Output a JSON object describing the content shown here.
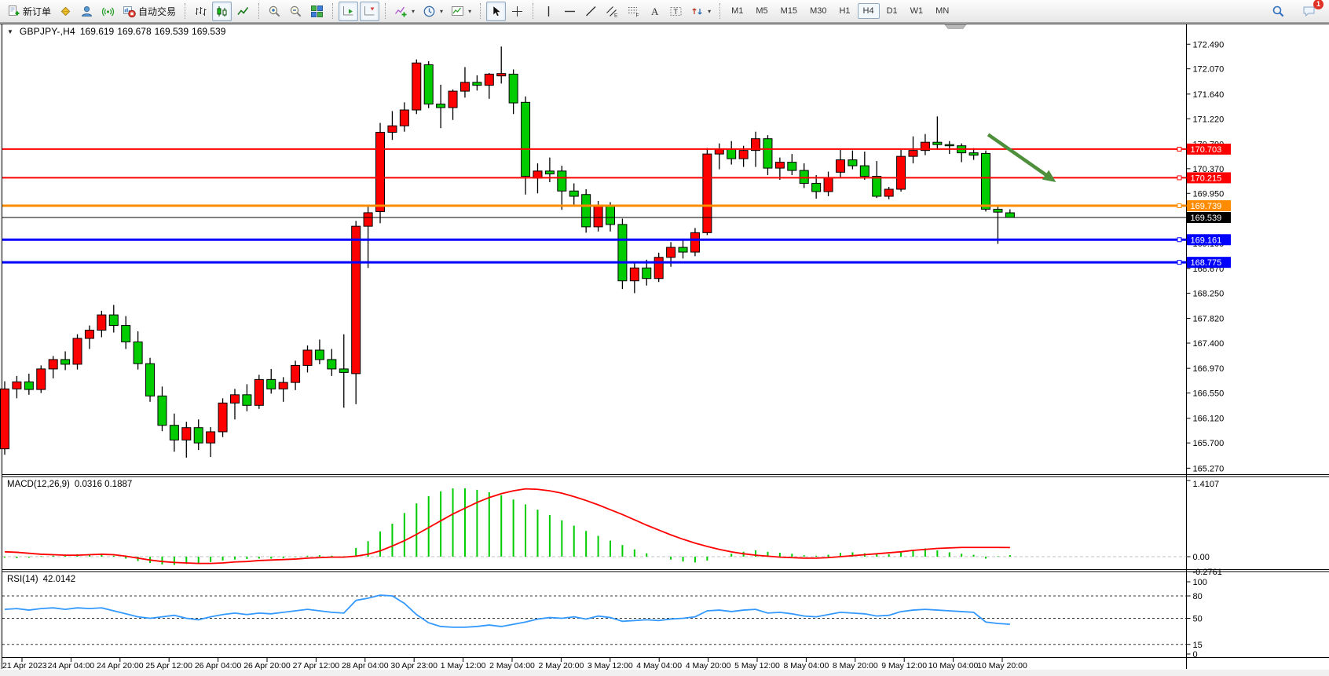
{
  "toolbar": {
    "buttons": [
      {
        "name": "new-order",
        "icon": "new-order-icon",
        "label": "新订单"
      },
      {
        "name": "metaeditor",
        "icon": "metaeditor-icon"
      },
      {
        "name": "community",
        "icon": "community-icon"
      },
      {
        "name": "signals",
        "icon": "signals-icon"
      },
      {
        "name": "autotrading",
        "icon": "autotrading-icon",
        "label": "自动交易"
      },
      {
        "sep": true
      },
      {
        "name": "chart-bars",
        "icon": "bar-chart-icon"
      },
      {
        "name": "chart-candles",
        "icon": "candles-icon",
        "active": true
      },
      {
        "name": "chart-line",
        "icon": "line-chart-icon"
      },
      {
        "sep": true
      },
      {
        "name": "zoom-in",
        "icon": "zoom-in-icon"
      },
      {
        "name": "zoom-out",
        "icon": "zoom-out-icon"
      },
      {
        "name": "tile-windows",
        "icon": "tile-windows-icon"
      },
      {
        "sep": true
      },
      {
        "name": "auto-scroll",
        "icon": "auto-scroll-icon",
        "active": true
      },
      {
        "name": "chart-shift",
        "icon": "chart-shift-icon",
        "active": true
      },
      {
        "sep": true
      },
      {
        "name": "indicators",
        "icon": "indicators-icon",
        "dropdown": true
      },
      {
        "name": "periods",
        "icon": "periods-icon",
        "dropdown": true
      },
      {
        "name": "templates",
        "icon": "templates-icon",
        "dropdown": true
      },
      {
        "sep": true
      },
      {
        "name": "cursor",
        "icon": "cursor-icon",
        "active": true
      },
      {
        "name": "crosshair",
        "icon": "crosshair-icon"
      },
      {
        "sep": true
      },
      {
        "name": "vertical-line",
        "icon": "vertical-line-icon"
      },
      {
        "name": "horizontal-line",
        "icon": "horizontal-line-icon"
      },
      {
        "name": "trend-line",
        "icon": "trend-line-icon"
      },
      {
        "name": "equidistant-channel",
        "icon": "channel-icon"
      },
      {
        "name": "fibonacci",
        "icon": "fibonacci-icon"
      },
      {
        "name": "text",
        "icon": "text-icon"
      },
      {
        "name": "text-label",
        "icon": "text-label-icon"
      },
      {
        "name": "arrows",
        "icon": "arrows-icon",
        "dropdown": true
      },
      {
        "sep": true
      }
    ],
    "timeframes": [
      {
        "label": "M1"
      },
      {
        "label": "M5"
      },
      {
        "label": "M15"
      },
      {
        "label": "M30"
      },
      {
        "label": "H1"
      },
      {
        "label": "H4",
        "active": true
      },
      {
        "label": "D1"
      },
      {
        "label": "W1"
      },
      {
        "label": "MN"
      }
    ],
    "right": [
      {
        "name": "search",
        "icon": "search-icon"
      },
      {
        "name": "chat",
        "icon": "chat-icon",
        "badge": "1"
      }
    ]
  },
  "chart": {
    "info": {
      "toggle": "▼",
      "symbol": "GBPJPY-,H4",
      "open": "169.619",
      "high": "169.678",
      "low": "169.539",
      "close": "169.539"
    }
  },
  "indicators": {
    "macd": {
      "title": "MACD(12,26,9)",
      "value1": "0.0316",
      "value2": "0.1887"
    },
    "rsi": {
      "title": "RSI(14)",
      "value": "42.0142"
    }
  },
  "chart_data": {
    "type": "candlestick",
    "symbol": "GBPJPY-",
    "timeframe": "H4",
    "up_color": "#FF0000",
    "down_color": "#00CC00",
    "wick_color": "#000000",
    "note_color_convention": "red = bullish, green = bearish",
    "price_axis_ticks": [
      "172.490",
      "172.070",
      "171.640",
      "171.220",
      "170.790",
      "170.370",
      "169.950",
      "169.530",
      "169.100",
      "168.670",
      "168.250",
      "167.820",
      "167.400",
      "166.970",
      "166.550",
      "166.120",
      "165.700",
      "165.270"
    ],
    "time_labels": [
      "21 Apr 2023",
      "24 Apr 04:00",
      "24 Apr 20:00",
      "25 Apr 12:00",
      "26 Apr 04:00",
      "26 Apr 20:00",
      "27 Apr 12:00",
      "28 Apr 04:00",
      "30 Apr 23:00",
      "1 May 12:00",
      "2 May 04:00",
      "2 May 20:00",
      "3 May 12:00",
      "4 May 04:00",
      "4 May 20:00",
      "5 May 12:00",
      "8 May 04:00",
      "8 May 20:00",
      "9 May 12:00",
      "10 May 04:00",
      "10 May 20:00"
    ],
    "candles": [
      [
        165.6,
        166.75,
        165.5,
        166.62
      ],
      [
        166.62,
        166.84,
        166.46,
        166.74
      ],
      [
        166.74,
        166.88,
        166.52,
        166.61
      ],
      [
        166.61,
        167.02,
        166.55,
        166.96
      ],
      [
        166.96,
        167.18,
        166.8,
        167.12
      ],
      [
        167.12,
        167.26,
        166.94,
        167.04
      ],
      [
        167.04,
        167.55,
        166.95,
        167.48
      ],
      [
        167.48,
        167.7,
        167.3,
        167.62
      ],
      [
        167.62,
        167.95,
        167.5,
        167.88
      ],
      [
        167.88,
        168.05,
        167.58,
        167.7
      ],
      [
        167.7,
        167.86,
        167.3,
        167.42
      ],
      [
        167.42,
        167.6,
        166.95,
        167.05
      ],
      [
        167.05,
        167.15,
        166.4,
        166.5
      ],
      [
        166.5,
        166.66,
        165.9,
        166.0
      ],
      [
        166.0,
        166.2,
        165.55,
        165.75
      ],
      [
        165.75,
        166.06,
        165.45,
        165.96
      ],
      [
        165.96,
        166.1,
        165.58,
        165.7
      ],
      [
        165.7,
        165.97,
        165.46,
        165.89
      ],
      [
        165.89,
        166.46,
        165.8,
        166.38
      ],
      [
        166.38,
        166.62,
        166.1,
        166.52
      ],
      [
        166.52,
        166.7,
        166.24,
        166.34
      ],
      [
        166.34,
        166.86,
        166.28,
        166.78
      ],
      [
        166.78,
        166.96,
        166.54,
        166.62
      ],
      [
        166.62,
        166.82,
        166.4,
        166.73
      ],
      [
        166.73,
        167.1,
        166.6,
        167.02
      ],
      [
        167.02,
        167.36,
        166.9,
        167.28
      ],
      [
        167.28,
        167.46,
        167.04,
        167.12
      ],
      [
        167.12,
        167.3,
        166.84,
        166.96
      ],
      [
        166.96,
        167.55,
        166.3,
        166.9
      ],
      [
        166.88,
        169.48,
        166.36,
        169.39
      ],
      [
        169.39,
        169.72,
        168.68,
        169.62
      ],
      [
        169.64,
        171.15,
        169.44,
        170.99
      ],
      [
        170.99,
        171.35,
        170.86,
        171.1
      ],
      [
        171.1,
        171.5,
        171.0,
        171.37
      ],
      [
        171.37,
        172.23,
        171.3,
        172.17
      ],
      [
        172.14,
        172.2,
        171.4,
        171.47
      ],
      [
        171.47,
        171.8,
        171.06,
        171.41
      ],
      [
        171.41,
        171.72,
        171.2,
        171.69
      ],
      [
        171.69,
        172.1,
        171.58,
        171.84
      ],
      [
        171.84,
        171.96,
        171.7,
        171.79
      ],
      [
        171.79,
        172.0,
        171.56,
        171.98
      ],
      [
        171.95,
        172.45,
        171.82,
        171.99
      ],
      [
        171.98,
        172.06,
        171.3,
        171.49
      ],
      [
        171.5,
        171.6,
        169.93,
        170.24
      ],
      [
        170.21,
        170.46,
        169.95,
        170.33
      ],
      [
        170.33,
        170.56,
        170.14,
        170.28
      ],
      [
        170.33,
        170.42,
        169.67,
        169.99
      ],
      [
        169.99,
        170.12,
        169.74,
        169.9
      ],
      [
        169.93,
        170.02,
        169.28,
        169.38
      ],
      [
        169.38,
        169.82,
        169.3,
        169.73
      ],
      [
        169.73,
        169.8,
        169.3,
        169.42
      ],
      [
        169.42,
        169.52,
        168.32,
        168.46
      ],
      [
        168.46,
        168.76,
        168.25,
        168.68
      ],
      [
        168.68,
        168.82,
        168.38,
        168.5
      ],
      [
        168.5,
        168.94,
        168.44,
        168.86
      ],
      [
        168.86,
        169.12,
        168.7,
        169.03
      ],
      [
        169.03,
        169.16,
        168.84,
        168.95
      ],
      [
        168.95,
        169.36,
        168.88,
        169.28
      ],
      [
        169.28,
        170.72,
        169.24,
        170.62
      ],
      [
        170.62,
        170.8,
        170.36,
        170.7
      ],
      [
        170.7,
        170.84,
        170.44,
        170.54
      ],
      [
        170.54,
        170.76,
        170.4,
        170.68
      ],
      [
        170.68,
        171.0,
        170.4,
        170.88
      ],
      [
        170.88,
        170.94,
        170.26,
        170.38
      ],
      [
        170.38,
        170.56,
        170.18,
        170.48
      ],
      [
        170.48,
        170.62,
        170.26,
        170.34
      ],
      [
        170.34,
        170.46,
        170.04,
        170.12
      ],
      [
        170.12,
        170.26,
        169.86,
        169.98
      ],
      [
        169.98,
        170.32,
        169.9,
        170.22
      ],
      [
        170.31,
        170.69,
        170.22,
        170.52
      ],
      [
        170.52,
        170.68,
        170.36,
        170.42
      ],
      [
        170.42,
        170.66,
        170.18,
        170.24
      ],
      [
        170.24,
        170.5,
        169.87,
        169.9
      ],
      [
        169.9,
        170.06,
        169.85,
        170.02
      ],
      [
        170.02,
        170.69,
        169.98,
        170.58
      ],
      [
        170.58,
        170.92,
        170.46,
        170.68
      ],
      [
        170.68,
        170.96,
        170.6,
        170.82
      ],
      [
        170.82,
        171.26,
        170.7,
        170.78
      ],
      [
        170.78,
        170.84,
        170.62,
        170.76
      ],
      [
        170.76,
        170.8,
        170.48,
        170.64
      ],
      [
        170.64,
        170.72,
        170.52,
        170.6
      ],
      [
        170.63,
        170.68,
        169.64,
        169.68
      ],
      [
        169.68,
        169.72,
        169.09,
        169.63
      ],
      [
        169.619,
        169.678,
        169.539,
        169.539
      ]
    ],
    "levels": [
      {
        "price": 170.703,
        "label": "170.703",
        "color": "#FF0000",
        "width": 2
      },
      {
        "price": 170.215,
        "label": "170.215",
        "color": "#FF0000",
        "width": 2
      },
      {
        "price": 169.739,
        "label": "169.739",
        "color": "#FF8C00",
        "width": 3
      },
      {
        "price": 169.539,
        "label": "169.539",
        "color": "#000000",
        "width": 1,
        "current": true
      },
      {
        "price": 169.161,
        "label": "169.161",
        "color": "#0000FF",
        "width": 3
      },
      {
        "price": 168.775,
        "label": "168.775",
        "color": "#0000FF",
        "width": 3
      }
    ],
    "arrow_annotation": {
      "from": {
        "candle": 81.2,
        "price": 170.95
      },
      "to": {
        "candle": 86.8,
        "price": 170.14
      },
      "color": "#4E8F3C"
    },
    "macd": {
      "params": "12,26,9",
      "axis_labels": [
        "1.4107",
        "0.00",
        "-0.2761"
      ],
      "scale_max": 1.4107,
      "scale_min": -0.2761,
      "histogram_color": "#00CC00",
      "signal_color": "#FF0000",
      "histogram": [
        -0.02,
        -0.03,
        -0.02,
        0.01,
        0.02,
        0.03,
        0.05,
        0.05,
        0.06,
        0.02,
        -0.04,
        -0.09,
        -0.13,
        -0.16,
        -0.17,
        -0.15,
        -0.13,
        -0.11,
        -0.08,
        -0.06,
        -0.05,
        -0.04,
        -0.04,
        -0.03,
        -0.01,
        0.02,
        0.03,
        0.02,
        0.01,
        0.18,
        0.32,
        0.52,
        0.68,
        0.9,
        1.1,
        1.25,
        1.35,
        1.41,
        1.41,
        1.38,
        1.33,
        1.27,
        1.18,
        1.08,
        0.97,
        0.86,
        0.75,
        0.64,
        0.53,
        0.43,
        0.33,
        0.24,
        0.15,
        0.07,
        0.0,
        -0.06,
        -0.1,
        -0.12,
        -0.08,
        0.0,
        0.06,
        0.1,
        0.13,
        0.1,
        0.08,
        0.06,
        0.03,
        0.02,
        0.04,
        0.08,
        0.09,
        0.07,
        0.05,
        0.05,
        0.1,
        0.14,
        0.17,
        0.13,
        0.09,
        0.06,
        0.04,
        -0.04,
        0.01,
        0.0316
      ],
      "signal": [
        0.1,
        0.09,
        0.07,
        0.05,
        0.04,
        0.03,
        0.03,
        0.04,
        0.05,
        0.04,
        0.01,
        -0.03,
        -0.07,
        -0.1,
        -0.12,
        -0.13,
        -0.14,
        -0.14,
        -0.13,
        -0.11,
        -0.1,
        -0.08,
        -0.07,
        -0.06,
        -0.05,
        -0.03,
        -0.02,
        -0.01,
        -0.01,
        0.01,
        0.05,
        0.12,
        0.22,
        0.33,
        0.46,
        0.6,
        0.74,
        0.88,
        1.0,
        1.12,
        1.22,
        1.3,
        1.36,
        1.4,
        1.39,
        1.36,
        1.31,
        1.24,
        1.16,
        1.07,
        0.97,
        0.87,
        0.76,
        0.65,
        0.55,
        0.45,
        0.36,
        0.28,
        0.21,
        0.15,
        0.1,
        0.06,
        0.03,
        0.01,
        -0.01,
        -0.02,
        -0.03,
        -0.03,
        -0.02,
        0.0,
        0.02,
        0.04,
        0.06,
        0.08,
        0.1,
        0.13,
        0.15,
        0.17,
        0.18,
        0.19,
        0.19,
        0.19,
        0.19,
        0.1887
      ]
    },
    "rsi": {
      "period": "14",
      "line_color": "#3399FF",
      "levels": [
        80,
        50,
        15
      ],
      "axis_labels": [
        "100",
        "80",
        "50",
        "15",
        "0"
      ],
      "values": [
        62,
        63,
        61,
        63,
        64,
        62,
        64,
        63,
        64,
        60,
        56,
        52,
        50,
        52,
        54,
        50,
        48,
        52,
        55,
        57,
        55,
        57,
        56,
        58,
        60,
        62,
        60,
        58,
        57,
        74,
        77,
        81,
        80,
        70,
        55,
        44,
        39,
        38,
        38,
        39,
        41,
        39,
        42,
        45,
        49,
        51,
        50,
        52,
        49,
        53,
        51,
        46,
        47,
        48,
        47,
        49,
        50,
        52,
        60,
        61,
        59,
        61,
        62,
        57,
        58,
        56,
        53,
        52,
        55,
        58,
        57,
        56,
        53,
        54,
        59,
        61,
        62,
        61,
        60,
        59,
        58,
        45,
        43,
        42.0142
      ]
    }
  }
}
